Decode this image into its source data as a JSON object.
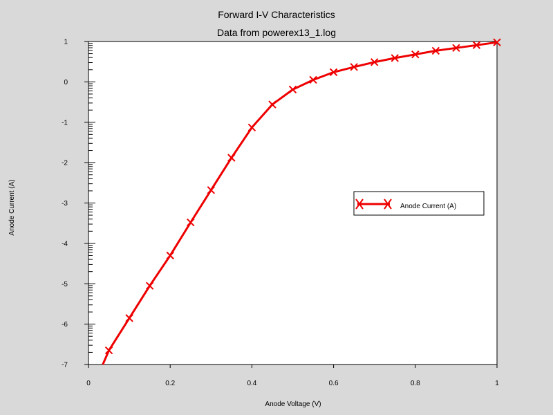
{
  "chart_data": {
    "type": "line",
    "title": "Forward I-V Characteristics",
    "subtitle": "Data from powerex13_1.log",
    "xlabel": "Anode Voltage (V)",
    "ylabel": "Anode Current (A)",
    "xlim": [
      0,
      1
    ],
    "ylim": [
      -7,
      1
    ],
    "xticks": [
      "0",
      "0.2",
      "0.4",
      "0.6",
      "0.8",
      "1"
    ],
    "yticks": [
      "-7",
      "-6",
      "-5",
      "-4",
      "-3",
      "-2",
      "-1",
      "0",
      "1"
    ],
    "grid": false,
    "legend_position": "right",
    "series": [
      {
        "name": "Anode Current (A)",
        "color": "#ee0000",
        "marker": "x",
        "x": [
          0.035,
          0.05,
          0.1,
          0.15,
          0.2,
          0.25,
          0.3,
          0.35,
          0.4,
          0.45,
          0.5,
          0.55,
          0.6,
          0.65,
          0.7,
          0.75,
          0.8,
          0.85,
          0.9,
          0.95,
          1.0
        ],
        "y": [
          -7.0,
          -6.65,
          -5.85,
          -5.05,
          -4.3,
          -3.48,
          -2.68,
          -1.88,
          -1.13,
          -0.56,
          -0.19,
          0.05,
          0.24,
          0.37,
          0.49,
          0.59,
          0.68,
          0.77,
          0.84,
          0.91,
          0.98
        ],
        "markers_x": [
          0.05,
          0.1,
          0.15,
          0.2,
          0.25,
          0.3,
          0.35,
          0.4,
          0.45,
          0.5,
          0.55,
          0.6,
          0.65,
          0.7,
          0.75,
          0.8,
          0.85,
          0.9,
          0.95,
          1.0
        ],
        "markers_y": [
          -6.65,
          -5.85,
          -5.05,
          -4.3,
          -3.48,
          -2.68,
          -1.88,
          -1.13,
          -0.56,
          -0.19,
          0.05,
          0.24,
          0.37,
          0.49,
          0.59,
          0.68,
          0.77,
          0.84,
          0.91,
          0.98
        ]
      }
    ]
  },
  "colors": {
    "background": "#d9d9d9",
    "plot_area": "#ffffff",
    "series": "#ee0000"
  }
}
